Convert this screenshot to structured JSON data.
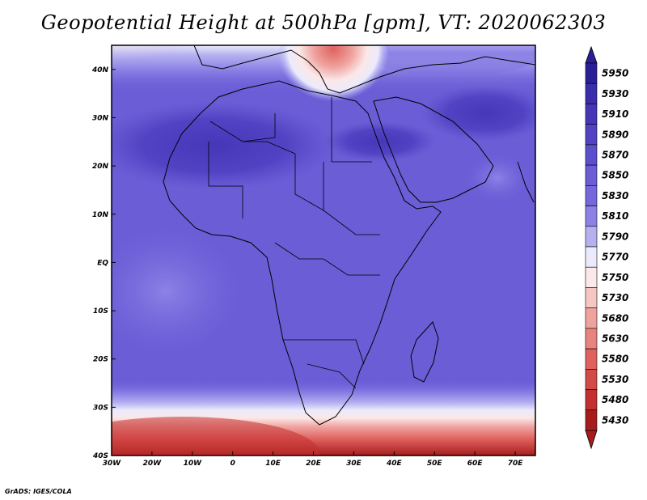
{
  "title": "Geopotential Height at 500hPa [gpm], VT: 2020062303",
  "credit": "GrADS: IGES/COLA",
  "map": {
    "lon_range": [
      -30,
      75
    ],
    "lat_range": [
      -40,
      45
    ],
    "x_ticks": [
      {
        "value": -30,
        "label": "30W"
      },
      {
        "value": -20,
        "label": "20W"
      },
      {
        "value": -10,
        "label": "10W"
      },
      {
        "value": 0,
        "label": "0"
      },
      {
        "value": 10,
        "label": "10E"
      },
      {
        "value": 20,
        "label": "20E"
      },
      {
        "value": 30,
        "label": "30E"
      },
      {
        "value": 40,
        "label": "40E"
      },
      {
        "value": 50,
        "label": "50E"
      },
      {
        "value": 60,
        "label": "60E"
      },
      {
        "value": 70,
        "label": "70E"
      }
    ],
    "y_ticks": [
      {
        "value": 40,
        "label": "40N"
      },
      {
        "value": 30,
        "label": "30N"
      },
      {
        "value": 20,
        "label": "20N"
      },
      {
        "value": 10,
        "label": "10N"
      },
      {
        "value": 0,
        "label": "EQ"
      },
      {
        "value": -10,
        "label": "10S"
      },
      {
        "value": -20,
        "label": "20S"
      },
      {
        "value": -30,
        "label": "30S"
      },
      {
        "value": -40,
        "label": "40S"
      }
    ]
  },
  "colorbar": {
    "levels": [
      {
        "label": "5950",
        "color": "#2b1f97"
      },
      {
        "label": "5930",
        "color": "#3a2eab"
      },
      {
        "label": "5910",
        "color": "#4637b9"
      },
      {
        "label": "5890",
        "color": "#5143c3"
      },
      {
        "label": "5870",
        "color": "#5c4fcc"
      },
      {
        "label": "5850",
        "color": "#6a5dd6"
      },
      {
        "label": "5830",
        "color": "#7568dc"
      },
      {
        "label": "5810",
        "color": "#8c82e6"
      },
      {
        "label": "5790",
        "color": "#b5b1f0"
      },
      {
        "label": "5770",
        "color": "#ebeafc"
      },
      {
        "label": "5750",
        "color": "#fbe8e8"
      },
      {
        "label": "5730",
        "color": "#f6c6c3"
      },
      {
        "label": "5680",
        "color": "#efa39f"
      },
      {
        "label": "5630",
        "color": "#e8847f"
      },
      {
        "label": "5580",
        "color": "#df625e"
      },
      {
        "label": "5530",
        "color": "#d44a46"
      },
      {
        "label": "5480",
        "color": "#c2302f"
      },
      {
        "label": "5430",
        "color": "#a61c1c"
      }
    ]
  }
}
